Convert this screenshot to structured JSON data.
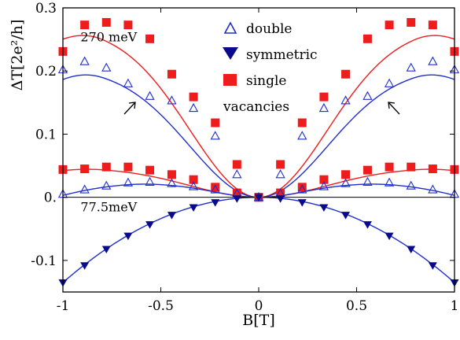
{
  "chart_data": {
    "type": "scatter",
    "xlabel": "B[T]",
    "ylabel": "ΔT[2e²/h]",
    "xlim": [
      -1,
      1
    ],
    "ylim": [
      -0.15,
      0.3
    ],
    "x_ticks": [
      -1,
      -0.5,
      0,
      0.5,
      1
    ],
    "x_tick_labels": [
      "-1",
      "-0.5",
      "0",
      "0.5",
      "1"
    ],
    "y_ticks": [
      -0.1,
      0,
      0.1,
      0.2,
      0.3
    ],
    "y_tick_labels": [
      "-0.1",
      "0.",
      "0.1",
      "0.2",
      "0.3"
    ],
    "grid": false,
    "legend_position": "top-center",
    "legend": [
      {
        "label": "double",
        "marker": "open-triangle-up",
        "color": "#1f2ecc"
      },
      {
        "label": "symmetric",
        "marker": "filled-triangle-down",
        "color": "#0a0a8c"
      },
      {
        "label": "single",
        "marker": "filled-square",
        "color": "#ee1c1c"
      },
      {
        "label": "vacancies",
        "marker": "none",
        "color": "#000000"
      }
    ],
    "annotations": [
      {
        "text": "270 meV",
        "x": -0.91,
        "y": 0.247
      },
      {
        "text": "77.5meV",
        "x": -0.91,
        "y": -0.022
      }
    ],
    "series": [
      {
        "name": "single",
        "group": "270 meV",
        "marker": "filled-square",
        "color": "#ee1c1c",
        "x": [
          -1,
          -0.889,
          -0.778,
          -0.667,
          -0.556,
          -0.444,
          -0.333,
          -0.222,
          -0.111,
          0,
          0.111,
          0.222,
          0.333,
          0.444,
          0.556,
          0.667,
          0.778,
          0.889,
          1
        ],
        "y": [
          0.231,
          0.273,
          0.277,
          0.273,
          0.251,
          0.195,
          0.159,
          0.118,
          0.052,
          0.0,
          0.052,
          0.118,
          0.159,
          0.195,
          0.251,
          0.273,
          0.277,
          0.273,
          0.231
        ]
      },
      {
        "name": "double",
        "group": "270 meV",
        "marker": "open-triangle-up",
        "color": "#1f2ecc",
        "x": [
          -1,
          -0.889,
          -0.778,
          -0.667,
          -0.556,
          -0.444,
          -0.333,
          -0.222,
          -0.111,
          0,
          0.111,
          0.222,
          0.333,
          0.444,
          0.556,
          0.667,
          0.778,
          0.889,
          1
        ],
        "y": [
          0.202,
          0.215,
          0.205,
          0.18,
          0.16,
          0.153,
          0.141,
          0.097,
          0.036,
          0.0,
          0.036,
          0.097,
          0.141,
          0.153,
          0.16,
          0.18,
          0.205,
          0.215,
          0.202
        ]
      },
      {
        "name": "single",
        "group": "77.5meV",
        "marker": "filled-square",
        "color": "#ee1c1c",
        "x": [
          -1,
          -0.889,
          -0.778,
          -0.667,
          -0.556,
          -0.444,
          -0.333,
          -0.222,
          -0.111,
          0,
          0.111,
          0.222,
          0.333,
          0.444,
          0.556,
          0.667,
          0.778,
          0.889,
          1
        ],
        "y": [
          0.044,
          0.045,
          0.048,
          0.048,
          0.043,
          0.036,
          0.028,
          0.016,
          0.007,
          0.0,
          0.007,
          0.016,
          0.028,
          0.036,
          0.043,
          0.048,
          0.048,
          0.045,
          0.044
        ]
      },
      {
        "name": "double",
        "group": "77.5meV",
        "marker": "open-triangle-up",
        "color": "#1f2ecc",
        "x": [
          -1,
          -0.889,
          -0.778,
          -0.667,
          -0.556,
          -0.444,
          -0.333,
          -0.222,
          -0.111,
          0,
          0.111,
          0.222,
          0.333,
          0.444,
          0.556,
          0.667,
          0.778,
          0.889,
          1
        ],
        "y": [
          0.005,
          0.012,
          0.018,
          0.023,
          0.024,
          0.022,
          0.017,
          0.012,
          0.006,
          0.0,
          0.006,
          0.012,
          0.017,
          0.022,
          0.024,
          0.023,
          0.018,
          0.012,
          0.005
        ]
      },
      {
        "name": "symmetric",
        "group": "77.5meV",
        "marker": "filled-triangle-down",
        "color": "#0a0a8c",
        "x": [
          -1,
          -0.889,
          -0.778,
          -0.667,
          -0.556,
          -0.444,
          -0.333,
          -0.222,
          -0.111,
          0,
          0.111,
          0.222,
          0.333,
          0.444,
          0.556,
          0.667,
          0.778,
          0.889,
          1
        ],
        "y": [
          -0.135,
          -0.108,
          -0.082,
          -0.061,
          -0.043,
          -0.028,
          -0.016,
          -0.008,
          -0.002,
          0.0,
          -0.002,
          -0.008,
          -0.016,
          -0.028,
          -0.043,
          -0.061,
          -0.082,
          -0.108,
          -0.135
        ]
      }
    ],
    "fit_curves": [
      {
        "fits": "single 270 meV",
        "color": "#ee1c1c",
        "peak": 0.27,
        "peak_x": 0.8,
        "baseline": 0.255
      },
      {
        "fits": "double 270 meV",
        "color": "#1f2ecc",
        "peak": 0.205,
        "peak_x": 0.8,
        "baseline": 0.19
      },
      {
        "fits": "single 77.5meV",
        "color": "#ee1c1c",
        "peak": 0.047,
        "peak_x": 0.8,
        "baseline": 0.043
      },
      {
        "fits": "double 77.5meV",
        "color": "#1f2ecc",
        "peak": 0.022,
        "peak_x": 0.52,
        "baseline": 0.003
      },
      {
        "fits": "symmetric 77.5meV",
        "color": "#1f2ecc",
        "end_value": -0.135
      }
    ]
  }
}
